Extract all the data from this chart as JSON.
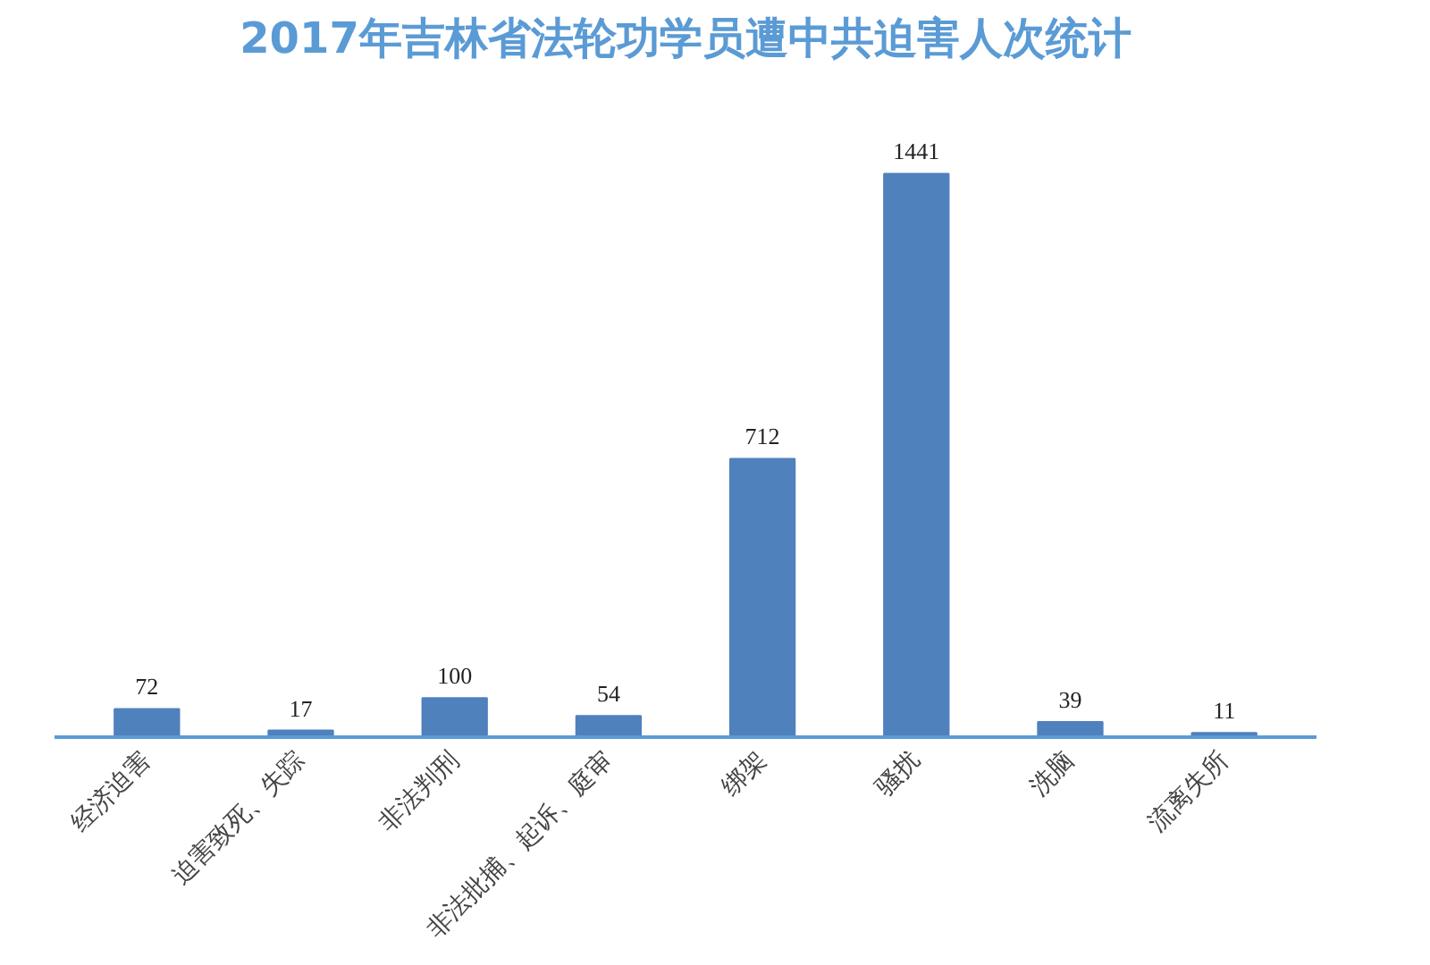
{
  "chart_data": {
    "type": "bar",
    "title": "2017年吉林省法轮功学员遭中共迫害人次统计",
    "categories": [
      "经济迫害",
      "迫害致死、失踪",
      "非法判刑",
      "非法批捕、起诉、庭审",
      "绑架",
      "骚扰",
      "洗脑",
      "流离失所"
    ],
    "values": [
      72,
      17,
      100,
      54,
      712,
      1441,
      39,
      11
    ],
    "color": "#4f81bd",
    "data_labels": true
  }
}
